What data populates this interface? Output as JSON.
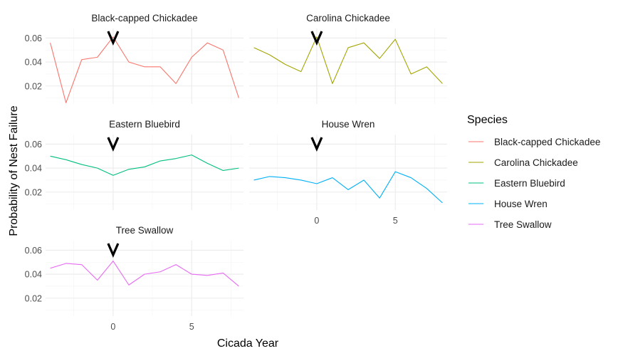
{
  "chart_data": {
    "type": "line",
    "xlabel": "Cicada Year",
    "ylabel": "Probability of Nest Failure",
    "xlim": [
      -4.3,
      8.3
    ],
    "ylim": [
      0.005,
      0.068
    ],
    "x_ticks": [
      0,
      5
    ],
    "y_ticks": [
      0.02,
      0.04,
      0.06
    ],
    "y_tick_labels": [
      "0.02",
      "0.04",
      "0.06"
    ],
    "x_tick_labels": [
      "0",
      "5"
    ],
    "grid": true,
    "legend": {
      "title": "Species",
      "position": "right"
    },
    "marker": {
      "x": 0,
      "symbol": "V"
    },
    "x": [
      -4,
      -3,
      -2,
      -1,
      0,
      1,
      2,
      3,
      4,
      5,
      6,
      7,
      8
    ],
    "series": [
      {
        "name": "Black-capped Chickadee",
        "color": "#F8766D",
        "values": [
          0.056,
          0.006,
          0.042,
          0.044,
          0.061,
          0.04,
          0.036,
          0.036,
          0.022,
          0.044,
          0.056,
          0.05,
          0.01
        ]
      },
      {
        "name": "Carolina Chickadee",
        "color": "#A3A500",
        "values": [
          0.052,
          0.046,
          0.038,
          0.032,
          0.061,
          0.022,
          0.052,
          0.056,
          0.043,
          0.059,
          0.03,
          0.036,
          0.022
        ]
      },
      {
        "name": "Eastern Bluebird",
        "color": "#00BF7D",
        "values": [
          0.05,
          0.047,
          0.043,
          0.04,
          0.034,
          0.039,
          0.041,
          0.046,
          0.048,
          0.051,
          0.044,
          0.038,
          0.04
        ]
      },
      {
        "name": "House Wren",
        "color": "#00B0F6",
        "values": [
          0.03,
          0.033,
          0.032,
          0.03,
          0.027,
          0.032,
          0.022,
          0.03,
          0.015,
          0.037,
          0.032,
          0.023,
          0.011
        ]
      },
      {
        "name": "Tree Swallow",
        "color": "#E76BF3",
        "values": [
          0.045,
          0.049,
          0.048,
          0.035,
          0.051,
          0.031,
          0.04,
          0.042,
          0.048,
          0.04,
          0.039,
          0.041,
          0.03
        ]
      }
    ]
  }
}
